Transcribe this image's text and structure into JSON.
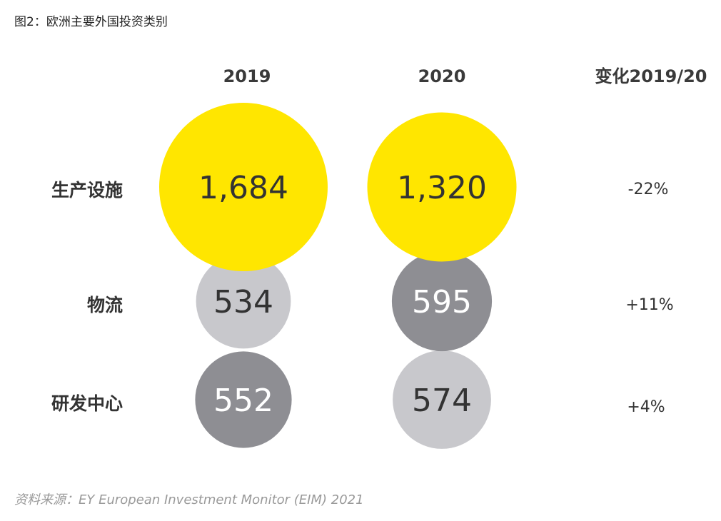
{
  "figure": {
    "title": "图2：欧洲主要外国投资类别",
    "source": "资料来源：EY European Investment Monitor (EIM) 2021"
  },
  "colors": {
    "highlight": "#FFE600",
    "light_grey": "#C8C8CC",
    "dark_grey": "#8E8E93",
    "text_dark": "#333333",
    "text_light": "#FFFFFF"
  },
  "chart_data": {
    "type": "bubble-table",
    "title": "图2：欧洲主要外国投资类别",
    "columns": [
      "2019",
      "2020"
    ],
    "change_header": "变化2019/20",
    "categories": [
      "生产设施",
      "物流",
      "研发中心"
    ],
    "series": [
      {
        "name": "2019",
        "values": [
          1684,
          534,
          552
        ],
        "labels": [
          "1,684",
          "534",
          "552"
        ],
        "styles": [
          "highlight",
          "light_grey",
          "dark_grey"
        ]
      },
      {
        "name": "2020",
        "values": [
          1320,
          595,
          574
        ],
        "labels": [
          "1,320",
          "595",
          "574"
        ],
        "styles": [
          "highlight",
          "dark_grey",
          "light_grey"
        ]
      }
    ],
    "changes": [
      "-22%",
      "+11%",
      "+4%"
    ]
  }
}
